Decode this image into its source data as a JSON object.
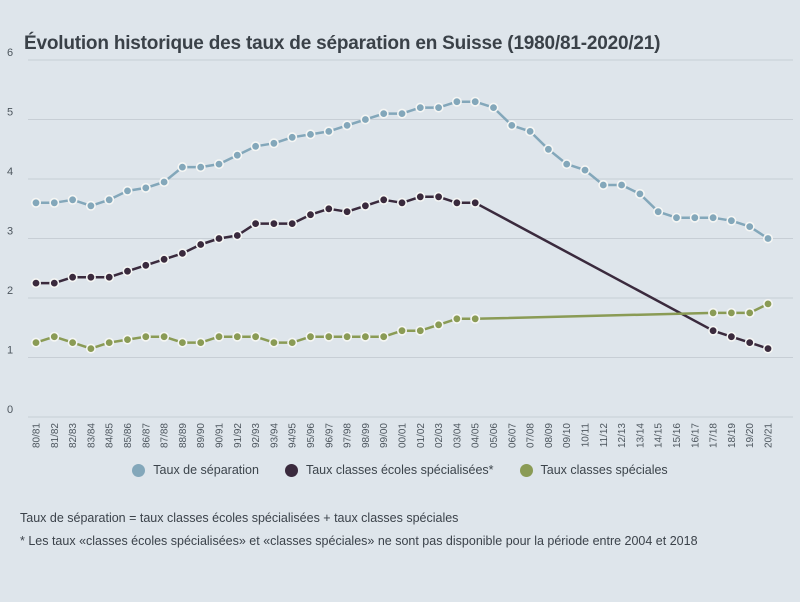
{
  "colors": {
    "background": "#dee5eb",
    "gridline": "#c7ced5",
    "tick_text": "#4d565e",
    "title_text": "#3a4148",
    "marker_stroke": "#f5f6f4"
  },
  "footnotes": [
    "Taux de séparation = taux classes écoles spécialisées + taux classes spéciales",
    "* Les taux «classes écoles spécialisées» et «classes spéciales» ne sont pas disponible pour la période entre 2004 et 2018"
  ],
  "chart_data": {
    "type": "line",
    "title": "Évolution historique des taux de séparation en Suisse (1980/81-2020/21)",
    "xlabel": "",
    "ylabel": "",
    "ylim": [
      0,
      6
    ],
    "yticks": [
      0,
      1,
      2,
      3,
      4,
      5,
      6
    ],
    "grid": "horizontal",
    "legend_position": "bottom",
    "x_tick_rotation": -90,
    "categories": [
      "80/81",
      "81/82",
      "82/83",
      "83/84",
      "84/85",
      "85/86",
      "86/87",
      "87/88",
      "88/89",
      "89/90",
      "90/91",
      "91/92",
      "92/93",
      "93/94",
      "94/95",
      "95/96",
      "96/97",
      "97/98",
      "98/99",
      "99/00",
      "00/01",
      "01/02",
      "02/03",
      "03/04",
      "04/05",
      "05/06",
      "06/07",
      "07/08",
      "08/09",
      "09/10",
      "10/11",
      "11/12",
      "12/13",
      "13/14",
      "14/15",
      "15/16",
      "16/17",
      "17/18",
      "18/19",
      "19/20",
      "20/21"
    ],
    "series": [
      {
        "name": "Taux de séparation",
        "color": "#83a7ba",
        "values": [
          3.6,
          3.6,
          3.65,
          3.55,
          3.65,
          3.8,
          3.85,
          3.95,
          4.2,
          4.2,
          4.25,
          4.4,
          4.55,
          4.6,
          4.7,
          4.75,
          4.8,
          4.9,
          5.0,
          5.1,
          5.1,
          5.2,
          5.2,
          5.3,
          5.3,
          5.2,
          4.9,
          4.8,
          4.5,
          4.25,
          4.15,
          3.9,
          3.9,
          3.75,
          3.45,
          3.35,
          3.35,
          3.35,
          3.3,
          3.2,
          3.0
        ]
      },
      {
        "name": "Taux classes écoles spécialisées*",
        "color": "#3a2a3d",
        "gap_connected": true,
        "values": [
          2.25,
          2.25,
          2.35,
          2.35,
          2.35,
          2.45,
          2.55,
          2.65,
          2.75,
          2.9,
          3.0,
          3.05,
          3.25,
          3.25,
          3.25,
          3.4,
          3.5,
          3.45,
          3.55,
          3.65,
          3.6,
          3.7,
          3.7,
          3.6,
          3.6,
          null,
          null,
          null,
          null,
          null,
          null,
          null,
          null,
          null,
          null,
          null,
          null,
          1.45,
          1.35,
          1.25,
          1.15
        ]
      },
      {
        "name": "Taux classes spéciales",
        "color": "#8a9b55",
        "gap_connected": true,
        "values": [
          1.25,
          1.35,
          1.25,
          1.15,
          1.25,
          1.3,
          1.35,
          1.35,
          1.25,
          1.25,
          1.35,
          1.35,
          1.35,
          1.25,
          1.25,
          1.35,
          1.35,
          1.35,
          1.35,
          1.35,
          1.45,
          1.45,
          1.55,
          1.65,
          1.65,
          null,
          null,
          null,
          null,
          null,
          null,
          null,
          null,
          null,
          null,
          null,
          null,
          1.75,
          1.75,
          1.75,
          1.9
        ]
      }
    ]
  }
}
